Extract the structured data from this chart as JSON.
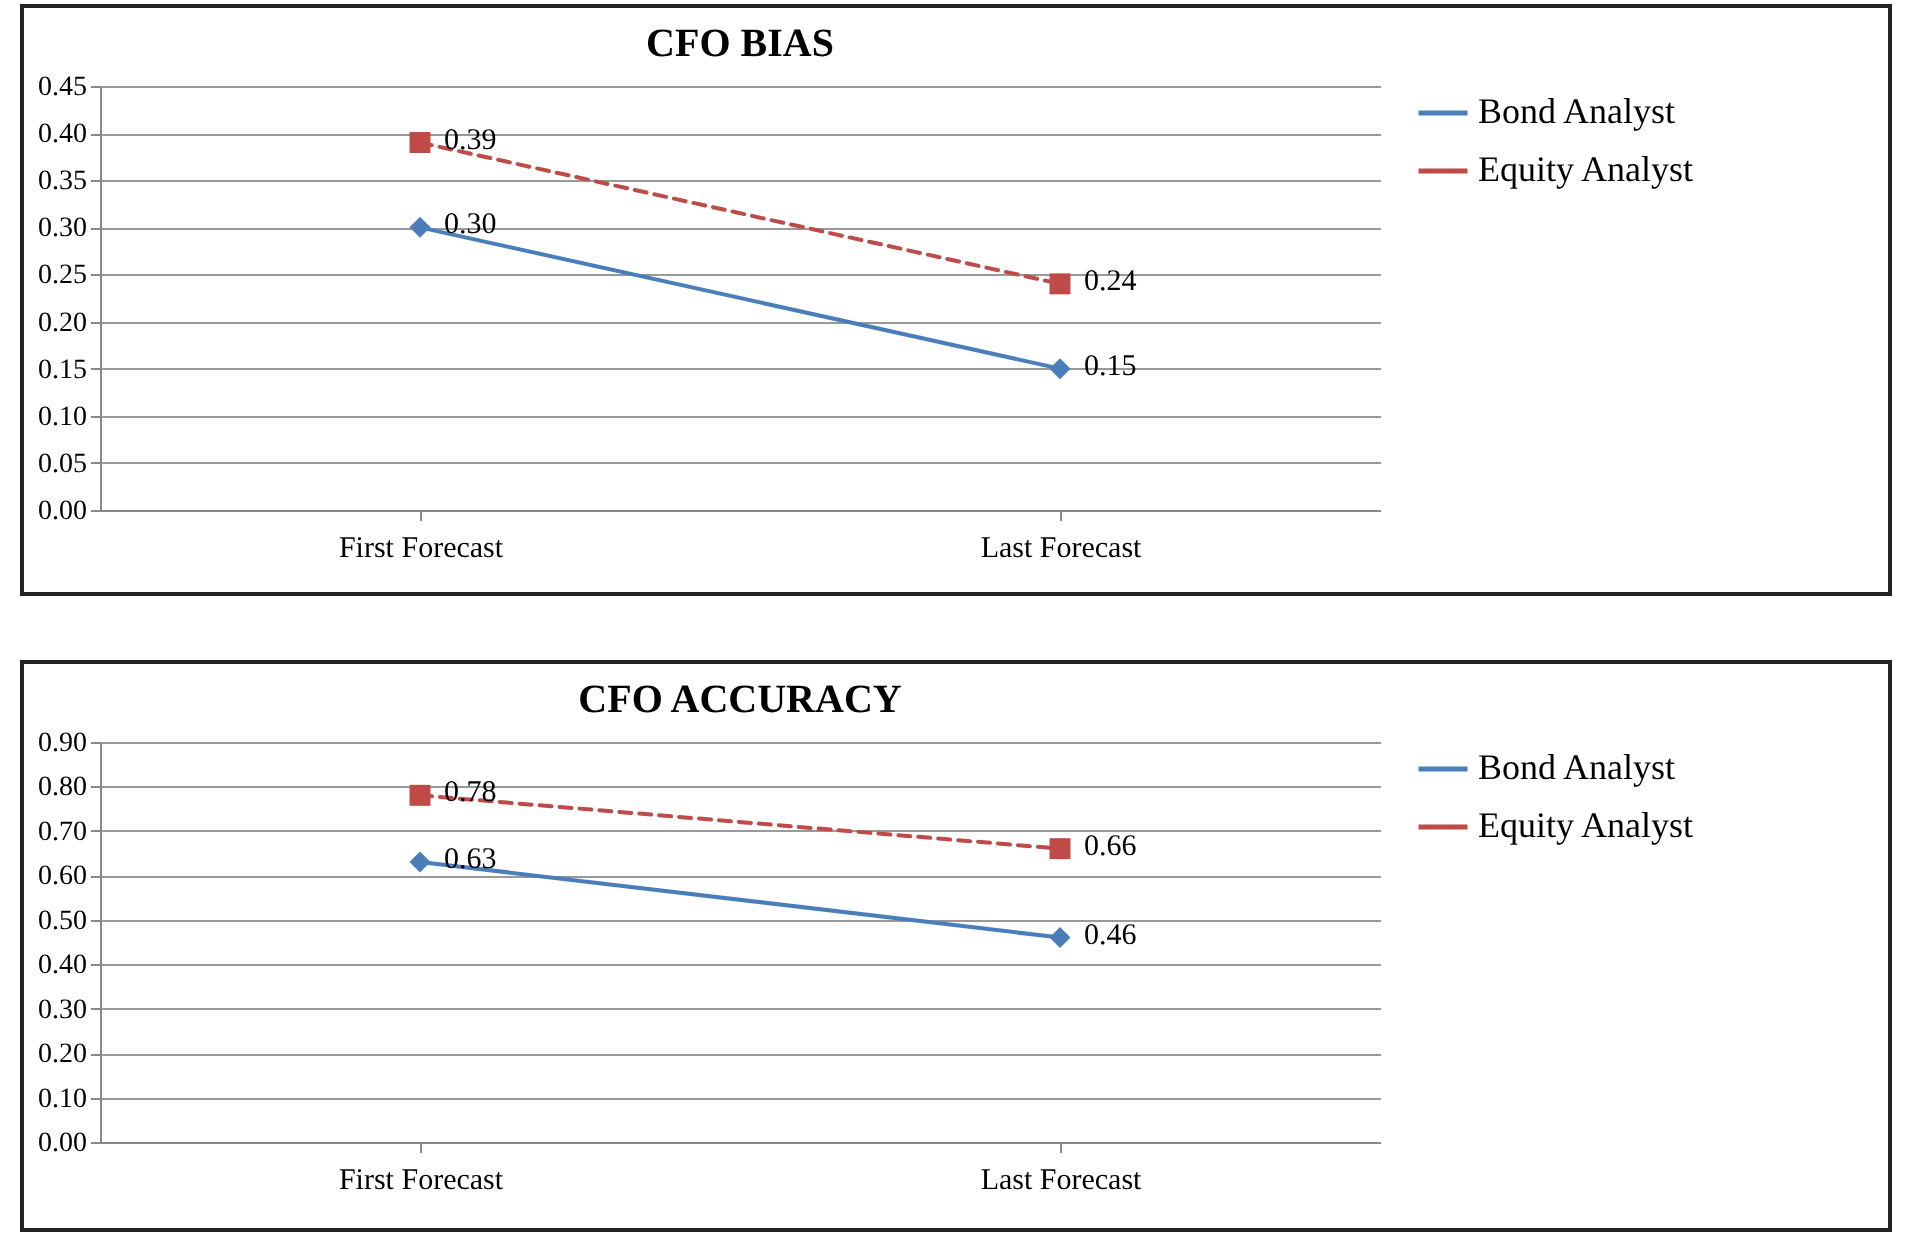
{
  "chart_data": [
    {
      "type": "line",
      "title": "CFO BIAS",
      "categories": [
        "First Forecast",
        "Last Forecast"
      ],
      "series": [
        {
          "name": "Bond Analyst",
          "color": "#4a7ebb",
          "values": [
            0.3,
            0.15
          ],
          "value_labels": [
            "0.30",
            "0.15"
          ],
          "marker": "diamond",
          "line_style": "solid"
        },
        {
          "name": "Equity Analyst",
          "color": "#be4b48",
          "values": [
            0.39,
            0.24
          ],
          "value_labels": [
            "0.39",
            "0.24"
          ],
          "marker": "square",
          "line_style": "dashed"
        }
      ],
      "ylim": [
        0,
        0.45
      ],
      "yticks": [
        {
          "value": 0,
          "label": "0.00"
        },
        {
          "value": 0.05,
          "label": "0.05"
        },
        {
          "value": 0.1,
          "label": "0.10"
        },
        {
          "value": 0.15,
          "label": "0.15"
        },
        {
          "value": 0.2,
          "label": "0.20"
        },
        {
          "value": 0.25,
          "label": "0.25"
        },
        {
          "value": 0.3,
          "label": "0.30"
        },
        {
          "value": 0.35,
          "label": "0.35"
        },
        {
          "value": 0.4,
          "label": "0.40"
        },
        {
          "value": 0.45,
          "label": "0.45"
        }
      ],
      "grid": "y",
      "legend": "right"
    },
    {
      "type": "line",
      "title": "CFO ACCURACY",
      "categories": [
        "First Forecast",
        "Last Forecast"
      ],
      "series": [
        {
          "name": "Bond Analyst",
          "color": "#4a7ebb",
          "values": [
            0.63,
            0.46
          ],
          "value_labels": [
            "0.63",
            "0.46"
          ],
          "marker": "diamond",
          "line_style": "solid"
        },
        {
          "name": "Equity Analyst",
          "color": "#be4b48",
          "values": [
            0.78,
            0.66
          ],
          "value_labels": [
            "0.78",
            "0.66"
          ],
          "marker": "square",
          "line_style": "dashed"
        }
      ],
      "ylim": [
        0,
        0.9
      ],
      "yticks": [
        {
          "value": 0,
          "label": "0.00"
        },
        {
          "value": 0.1,
          "label": "0.10"
        },
        {
          "value": 0.2,
          "label": "0.20"
        },
        {
          "value": 0.3,
          "label": "0.30"
        },
        {
          "value": 0.4,
          "label": "0.40"
        },
        {
          "value": 0.5,
          "label": "0.50"
        },
        {
          "value": 0.6,
          "label": "0.60"
        },
        {
          "value": 0.7,
          "label": "0.70"
        },
        {
          "value": 0.8,
          "label": "0.80"
        },
        {
          "value": 0.9,
          "label": "0.90"
        }
      ],
      "grid": "y",
      "legend": "right"
    }
  ]
}
